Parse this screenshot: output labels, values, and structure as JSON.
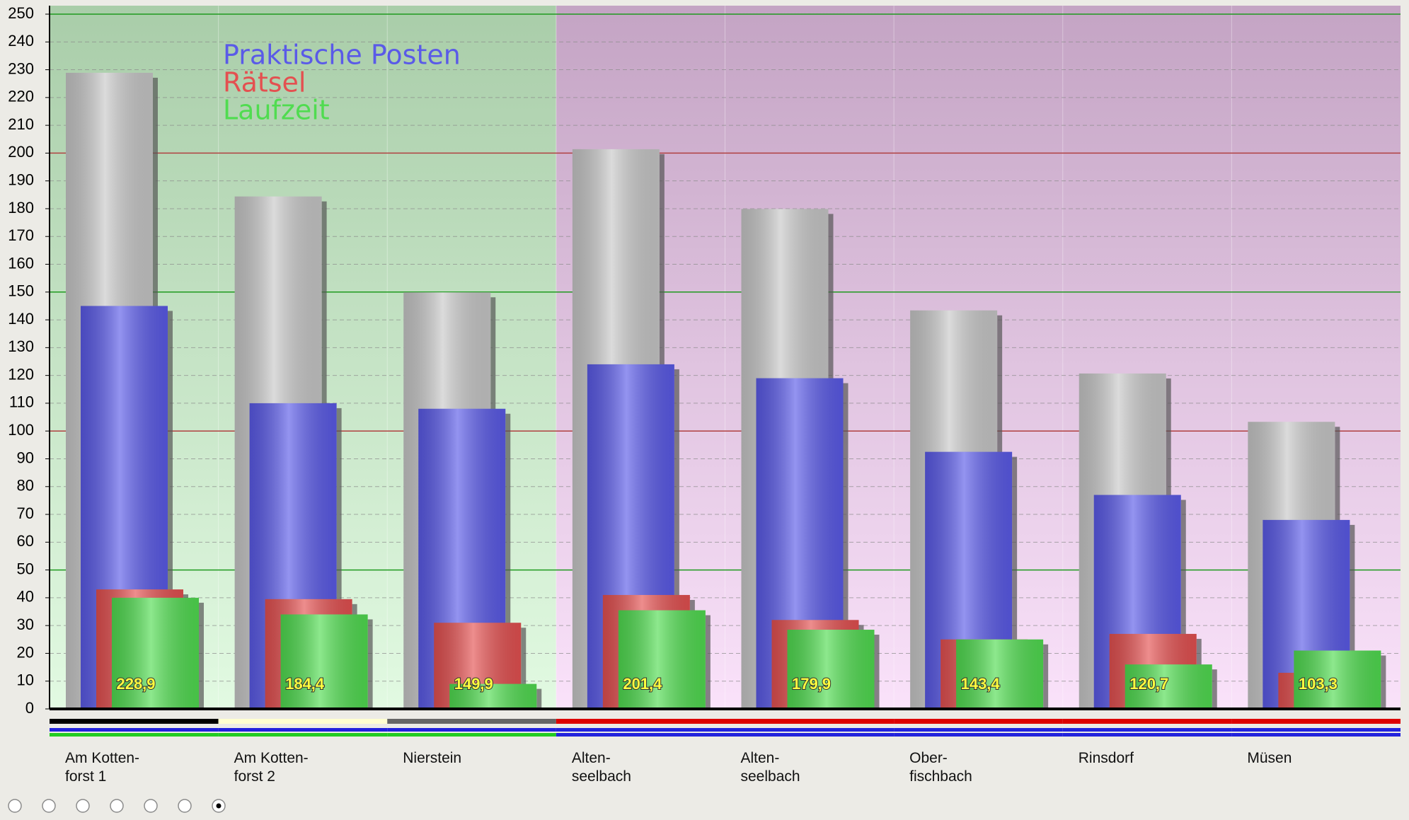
{
  "chart_data": {
    "type": "bar",
    "categories": [
      "Am Kotten-\nforst 1",
      "Am Kotten-\nforst 2",
      "Nierstein",
      "Alten-\nseelbach",
      "Alten-\nseelbach",
      "Ober-\nfischbach",
      "Rinsdorf",
      "Müsen"
    ],
    "series": [
      {
        "color": "#c8c8c8",
        "values": [
          228.9,
          184.4,
          149.9,
          201.4,
          179.9,
          143.4,
          120.7,
          103.3
        ],
        "value_labels": [
          "228,9",
          "184,4",
          "149,9",
          "201,4",
          "179,9",
          "143,4",
          "120,7",
          "103,3"
        ]
      },
      {
        "name": "Praktische Posten",
        "color": "#5a5ae8",
        "values": [
          145,
          110,
          108,
          124,
          119,
          92.5,
          77,
          68
        ]
      },
      {
        "name": "Rätsel",
        "color": "#e45050",
        "values": [
          43,
          39.5,
          31,
          41,
          32,
          25,
          27,
          13
        ]
      },
      {
        "name": "Laufzeit",
        "color": "#50dc50",
        "values": [
          40,
          34,
          9,
          35.5,
          28.5,
          25,
          16,
          21
        ]
      }
    ],
    "ylim": [
      0,
      250
    ],
    "yticks": [
      0,
      10,
      20,
      30,
      40,
      50,
      60,
      70,
      80,
      90,
      100,
      110,
      120,
      130,
      140,
      150,
      160,
      170,
      180,
      190,
      200,
      210,
      220,
      230,
      240,
      250
    ],
    "grid": true
  }
}
